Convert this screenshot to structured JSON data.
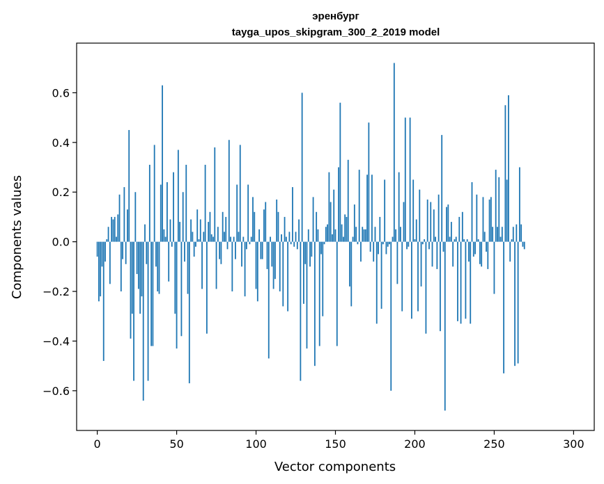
{
  "chart_data": {
    "type": "bar",
    "title": "эренбург",
    "subtitle": "tayga_upos_skipgram_300_2_2019 model",
    "xlabel": "Vector components",
    "ylabel": "Components values",
    "xlim": [
      -13,
      313
    ],
    "ylim": [
      -0.76,
      0.8
    ],
    "xticks": [
      0,
      50,
      100,
      150,
      200,
      250,
      300
    ],
    "yticks": [
      -0.6,
      -0.4,
      -0.2,
      0.0,
      0.2,
      0.4,
      0.6
    ],
    "xtick_labels": [
      "0",
      "50",
      "100",
      "150",
      "200",
      "250",
      "300"
    ],
    "ytick_labels": [
      "−0.6",
      "−0.4",
      "−0.2",
      "0.0",
      "0.2",
      "0.4",
      "0.6"
    ],
    "bar_color": "#1f77b4",
    "grid": false,
    "legend": "none",
    "x_start": 0,
    "values": [
      -0.06,
      -0.24,
      -0.22,
      -0.1,
      -0.48,
      -0.08,
      0.01,
      0.06,
      -0.17,
      0.1,
      0.09,
      0.1,
      0.02,
      0.11,
      0.19,
      -0.2,
      -0.07,
      0.22,
      -0.09,
      0.13,
      0.45,
      -0.39,
      -0.29,
      -0.56,
      0.2,
      -0.13,
      -0.19,
      -0.29,
      -0.22,
      -0.64,
      0.07,
      -0.09,
      -0.56,
      0.31,
      -0.42,
      -0.42,
      0.39,
      -0.1,
      -0.2,
      -0.21,
      0.23,
      0.63,
      0.05,
      0.02,
      0.24,
      -0.16,
      0.09,
      -0.02,
      0.28,
      -0.29,
      -0.43,
      0.37,
      0.08,
      -0.38,
      0.2,
      -0.08,
      0.31,
      -0.21,
      -0.57,
      0.09,
      0.04,
      -0.06,
      -0.02,
      0.13,
      0.01,
      0.09,
      -0.19,
      0.04,
      0.31,
      -0.37,
      0.08,
      0.12,
      0.03,
      0.02,
      0.38,
      -0.19,
      0.06,
      -0.07,
      -0.09,
      0.12,
      0.04,
      0.1,
      -0.03,
      0.41,
      0.02,
      -0.2,
      0.02,
      -0.07,
      0.23,
      0.04,
      0.39,
      -0.1,
      0.02,
      -0.22,
      -0.03,
      0.23,
      -0.01,
      0.02,
      0.18,
      0.12,
      -0.19,
      -0.24,
      0.05,
      -0.07,
      -0.07,
      0.13,
      0.16,
      -0.11,
      -0.47,
      0.02,
      -0.1,
      -0.19,
      -0.15,
      0.17,
      0.12,
      -0.2,
      0.03,
      -0.26,
      0.1,
      0.02,
      -0.28,
      0.04,
      -0.01,
      0.22,
      -0.02,
      0.04,
      -0.03,
      0.09,
      -0.56,
      0.6,
      -0.25,
      -0.09,
      -0.43,
      0.05,
      -0.1,
      -0.06,
      0.18,
      -0.5,
      0.12,
      0.05,
      -0.42,
      -0.05,
      -0.3,
      -0.01,
      0.06,
      0.07,
      0.28,
      0.16,
      0.03,
      0.21,
      0.05,
      -0.42,
      0.3,
      0.56,
      0.07,
      0.02,
      0.11,
      0.1,
      0.33,
      -0.18,
      -0.26,
      0.02,
      0.15,
      0.06,
      -0.01,
      0.29,
      -0.08,
      0.06,
      0.05,
      0.05,
      0.27,
      0.48,
      -0.04,
      0.27,
      -0.08,
      0.06,
      -0.33,
      -0.05,
      0.1,
      -0.27,
      -0.01,
      0.25,
      -0.05,
      -0.02,
      -0.01,
      -0.6,
      0.02,
      0.72,
      0.05,
      -0.17,
      0.28,
      0.06,
      -0.28,
      0.16,
      0.5,
      -0.03,
      -0.02,
      0.5,
      -0.31,
      0.25,
      0.01,
      0.09,
      -0.28,
      0.21,
      -0.18,
      -0.01,
      0.01,
      -0.37,
      0.17,
      -0.03,
      0.16,
      -0.1,
      0.13,
      0.02,
      -0.11,
      0.19,
      -0.36,
      0.43,
      -0.04,
      -0.68,
      0.14,
      0.15,
      0.02,
      0.08,
      -0.1,
      0.01,
      0.02,
      -0.32,
      0.1,
      -0.33,
      0.12,
      0.01,
      -0.31,
      0.01,
      -0.08,
      -0.33,
      0.24,
      -0.06,
      -0.05,
      0.19,
      0.01,
      -0.09,
      -0.1,
      0.18,
      0.04,
      -0.04,
      -0.11,
      0.17,
      0.18,
      0.06,
      -0.21,
      0.29,
      0.06,
      0.26,
      0.02,
      0.06,
      -0.53,
      0.55,
      0.25,
      0.59,
      -0.08,
      0.01,
      0.06,
      -0.5,
      0.07,
      -0.49,
      0.3,
      0.07,
      -0.02,
      -0.03
    ]
  }
}
